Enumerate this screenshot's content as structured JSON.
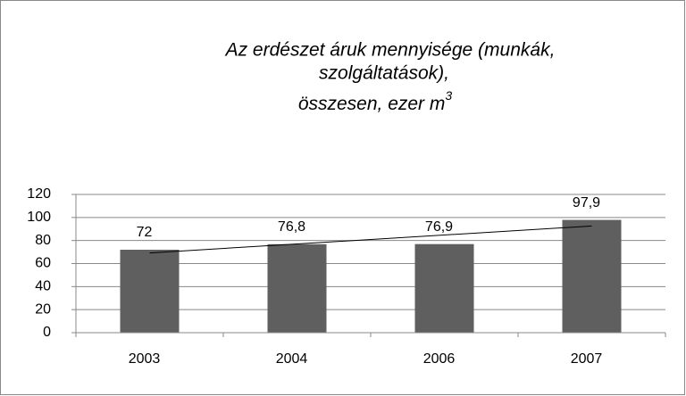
{
  "chart_data": {
    "type": "bar",
    "title_lines": [
      "Az erdészet áruk mennyisége (munkák,",
      "szolgáltatások),",
      "összesen, ezer m"
    ],
    "title_superscript": "3",
    "categories": [
      "2003",
      "2004",
      "2006",
      "2007"
    ],
    "values": [
      72,
      76.8,
      76.9,
      97.9
    ],
    "value_labels": [
      "72",
      "76,8",
      "76,9",
      "97,9"
    ],
    "color": "#5f5f5f",
    "ylim": [
      0,
      120
    ],
    "yticks": [
      0,
      20,
      40,
      60,
      80,
      100,
      120
    ],
    "grid": true,
    "trendline": "linear"
  }
}
